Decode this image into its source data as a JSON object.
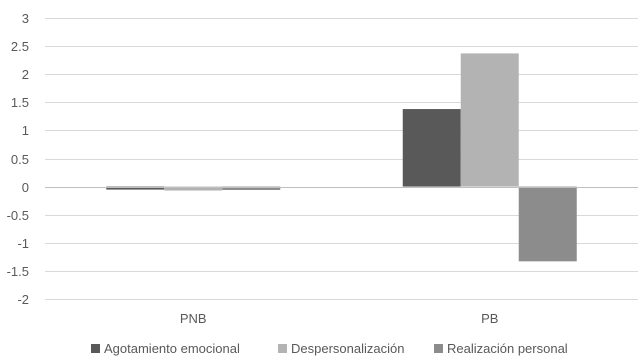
{
  "chart_data": {
    "type": "bar",
    "title": "",
    "xlabel": "",
    "ylabel": "",
    "categories": [
      "PNB",
      "PB"
    ],
    "series": [
      {
        "name": "Agotamiento emocional",
        "color": "#595959",
        "values": [
          -0.05,
          1.38
        ]
      },
      {
        "name": "Despersonalización",
        "color": "#b3b3b3",
        "values": [
          -0.07,
          2.37
        ]
      },
      {
        "name": "Realización personal",
        "color": "#8c8c8c",
        "values": [
          -0.06,
          -1.33
        ]
      }
    ],
    "ylim": [
      -2,
      3
    ],
    "yticks": [
      3,
      2.5,
      2,
      1.5,
      1,
      0.5,
      0,
      -0.5,
      -1,
      -1.5,
      -2
    ],
    "ytick_labels": [
      "3",
      "2.5",
      "2",
      "1.5",
      "1",
      "0.5",
      "0",
      "-0.5",
      "-1",
      "-1.5",
      "-2"
    ],
    "grid": true,
    "legend": "bottom"
  }
}
